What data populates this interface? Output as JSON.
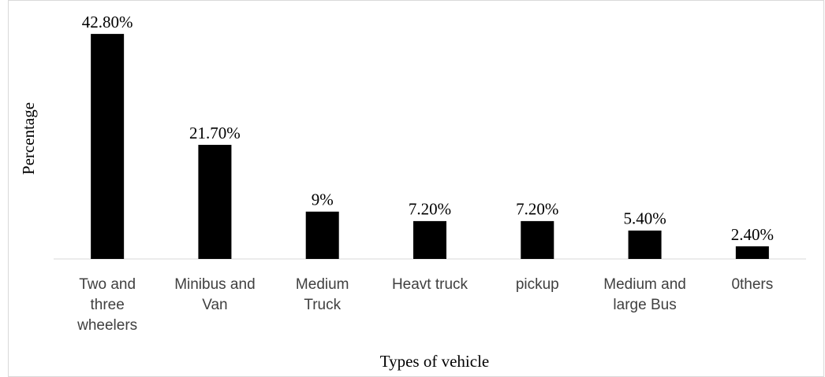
{
  "chart_data": {
    "type": "bar",
    "x_label": "Types of vehicle",
    "y_label": "Percentage",
    "categories": [
      "Two and three wheelers",
      "Minibus and Van",
      "Medium Truck",
      "Heavt truck",
      "pickup",
      "Medium and large Bus",
      "0thers"
    ],
    "values": [
      42.8,
      21.7,
      9,
      7.2,
      7.2,
      5.4,
      2.4
    ],
    "value_labels": [
      "42.80%",
      "21.70%",
      "9%",
      "7.20%",
      "7.20%",
      "5.40%",
      "2.40%"
    ],
    "color": "#000000"
  }
}
